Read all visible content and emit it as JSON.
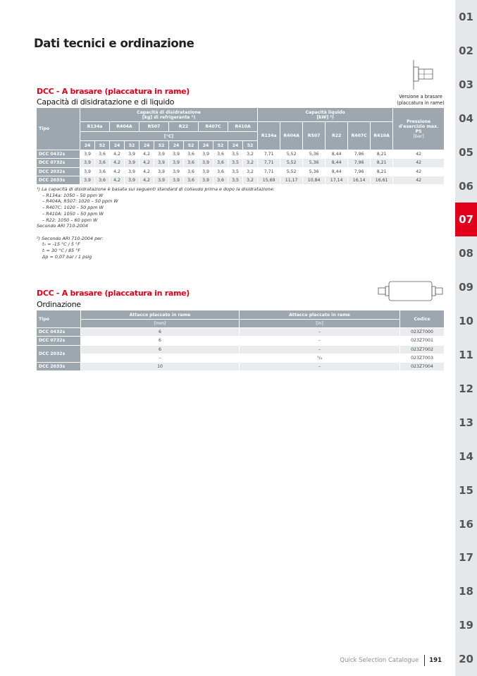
{
  "page_title": "Dati tecnici e ordinazione",
  "section1": {
    "heading": "DCC - A brasare (placcatura in rame)",
    "subheading": "Capacità di disidratazione e di liquido",
    "image_caption_1": "Versione a brasare",
    "image_caption_2": "(placcatura in rame)",
    "headers": {
      "tipo": "Tipo",
      "dehyd_1": "Capacità di disidratazione",
      "dehyd_2": "[kg] di refrigerante ¹)",
      "liquid_1": "Capacità liquido",
      "liquid_2": "[kW] ²)",
      "pressure_1": "Pressione",
      "pressure_2": "d'esercizio max.",
      "pressure_3": "PS",
      "pressure_4": "[bar]",
      "temp_unit": "[°C]",
      "refrigerants": [
        "R134a",
        "R404A",
        "R507",
        "R22",
        "R407C",
        "R410A"
      ],
      "temps": [
        "24",
        "52"
      ]
    },
    "rows": [
      {
        "tipo": "DCC 0432s",
        "dehyd": [
          "3,9",
          "3,6",
          "4,2",
          "3,9",
          "4,2",
          "3,9",
          "3,9",
          "3,6",
          "3,9",
          "3,6",
          "3,5",
          "3,2"
        ],
        "liquid": [
          "7,71",
          "5,52",
          "5,36",
          "8,44",
          "7,96",
          "8,21"
        ],
        "ps": "42"
      },
      {
        "tipo": "DCC 0732s",
        "dehyd": [
          "3,9",
          "3,6",
          "4,2",
          "3,9",
          "4,2",
          "3,9",
          "3,9",
          "3,6",
          "3,9",
          "3,6",
          "3,5",
          "3,2"
        ],
        "liquid": [
          "7,71",
          "5,52",
          "5,36",
          "8,44",
          "7,96",
          "8,21"
        ],
        "ps": "42"
      },
      {
        "tipo": "DCC 2032s",
        "dehyd": [
          "3,9",
          "3,6",
          "4,2",
          "3,9",
          "4,2",
          "3,9",
          "3,9",
          "3,6",
          "3,9",
          "3,6",
          "3,5",
          "3,2"
        ],
        "liquid": [
          "7,71",
          "5,52",
          "5,36",
          "8,44",
          "7,96",
          "8,21"
        ],
        "ps": "42"
      },
      {
        "tipo": "DCC 2033s",
        "dehyd": [
          "3,9",
          "3,6",
          "4,2",
          "3,9",
          "4,2",
          "3,9",
          "3,9",
          "3,6",
          "3,9",
          "3,6",
          "3,5",
          "3,2"
        ],
        "liquid": [
          "15,69",
          "11,17",
          "10,84",
          "17,14",
          "16,14",
          "16,61"
        ],
        "ps": "42"
      }
    ],
    "notes": [
      "¹) La capacità di disidratazione è basata sui seguenti standard di collaudo prima e dopo la disidratazione:",
      "– R134a: 1050 – 50 ppm W",
      "– R404A, R507: 1020 – 50 ppm W",
      "– R407C: 1020 – 50 ppm W",
      "– R410A: 1050 – 50 ppm W",
      "– R22: 1050 – 60 ppm W",
      "Secondo ARI 710-2004",
      "",
      "²) Secondo ARI 710-2004 per:",
      "t₀ = -15 °C / 5 °F",
      "tₗ = 30 °C / 85 °F",
      "Δp = 0,07 bar / 1 psig"
    ]
  },
  "section2": {
    "heading": "DCC - A brasare (placcatura in rame)",
    "subheading": "Ordinazione",
    "headers": {
      "tipo": "Tipo",
      "mm_1": "Attacco placcato in rame",
      "mm_2": "[mm]",
      "in_1": "Attacco placcato in rame",
      "in_2": "[in]",
      "codice": "Codice"
    },
    "rows": [
      {
        "tipo": "DCC 0432s",
        "mm": "6",
        "in": "–",
        "codice": "023Z7000"
      },
      {
        "tipo": "DCC 0732s",
        "mm": "6",
        "in": "–",
        "codice": "023Z7001"
      },
      {
        "tipo": "DCC 2032s",
        "mm": "6",
        "in": "–",
        "codice": "023Z7002"
      },
      {
        "tipo": "",
        "mm": "–",
        "in": "¹/₄",
        "codice": "023Z7003"
      },
      {
        "tipo": "DCC 2033s",
        "mm": "10",
        "in": "–",
        "codice": "023Z7004"
      }
    ]
  },
  "sidebar": {
    "tabs": [
      "01",
      "02",
      "03",
      "04",
      "05",
      "06",
      "07",
      "08",
      "09",
      "10",
      "11",
      "12",
      "13",
      "14",
      "15",
      "16",
      "17",
      "18",
      "19",
      "20"
    ],
    "active": "07"
  },
  "footer": {
    "catalogue": "Quick Selection Catalogue",
    "page": "191"
  },
  "colors": {
    "accent": "#e2001a",
    "header": "#9ca7af",
    "stripe": "#e8ecee",
    "sidebar": "#e5e8ea"
  }
}
